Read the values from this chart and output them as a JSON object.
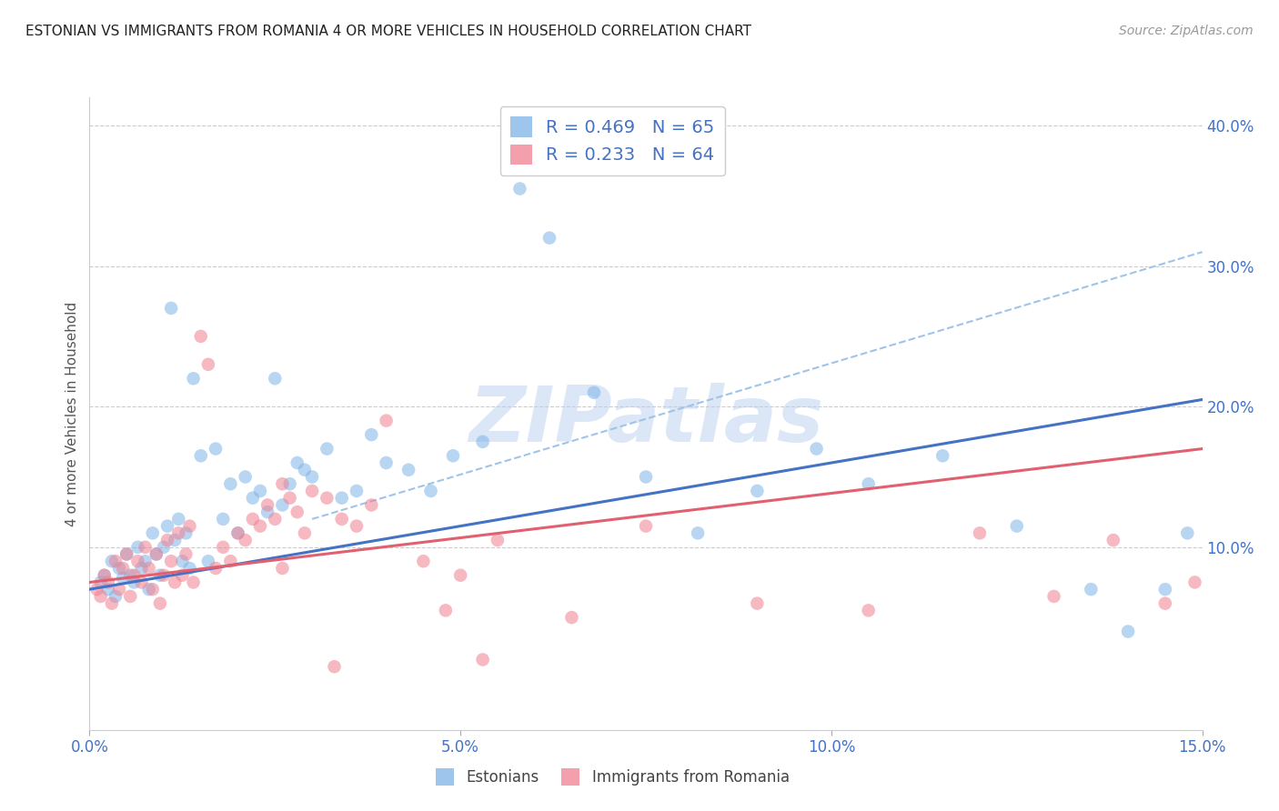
{
  "title": "ESTONIAN VS IMMIGRANTS FROM ROMANIA 4 OR MORE VEHICLES IN HOUSEHOLD CORRELATION CHART",
  "source": "Source: ZipAtlas.com",
  "ylabel": "4 or more Vehicles in Household",
  "xlim": [
    0.0,
    15.0
  ],
  "ylim": [
    -3.0,
    42.0
  ],
  "yticks_right": [
    10.0,
    20.0,
    30.0,
    40.0
  ],
  "ytick_labels_right": [
    "10.0%",
    "20.0%",
    "30.0%",
    "40.0%"
  ],
  "xticks": [
    0.0,
    5.0,
    10.0,
    15.0
  ],
  "xtick_labels": [
    "0.0%",
    "5.0%",
    "10.0%",
    "15.0%"
  ],
  "legend_entry1_label": "R = 0.469   N = 65",
  "legend_entry2_label": "R = 0.233   N = 64",
  "legend_label1": "Estonians",
  "legend_label2": "Immigrants from Romania",
  "watermark": "ZIPatlas",
  "watermark_color": "#b8d0ee",
  "background_color": "#ffffff",
  "grid_color": "#cccccc",
  "axis_color": "#4472c4",
  "blue_scatter_color": "#7eb3e8",
  "pink_scatter_color": "#f08090",
  "blue_line_color": "#4472c4",
  "pink_line_color": "#e06070",
  "dashed_line_color": "#a0c4e8",
  "blue_line_x0": 0.0,
  "blue_line_y0": 7.0,
  "blue_line_x1": 15.0,
  "blue_line_y1": 20.5,
  "pink_line_x0": 0.0,
  "pink_line_y0": 7.5,
  "pink_line_x1": 15.0,
  "pink_line_y1": 17.0,
  "dashed_line_x0": 3.0,
  "dashed_line_y0": 12.0,
  "dashed_line_x1": 15.0,
  "dashed_line_y1": 31.0,
  "blue_points_x": [
    0.15,
    0.2,
    0.25,
    0.3,
    0.35,
    0.4,
    0.45,
    0.5,
    0.55,
    0.6,
    0.65,
    0.7,
    0.75,
    0.8,
    0.85,
    0.9,
    0.95,
    1.0,
    1.05,
    1.1,
    1.15,
    1.2,
    1.25,
    1.3,
    1.35,
    1.4,
    1.5,
    1.6,
    1.7,
    1.8,
    1.9,
    2.0,
    2.1,
    2.2,
    2.3,
    2.4,
    2.5,
    2.6,
    2.7,
    2.8,
    2.9,
    3.0,
    3.2,
    3.4,
    3.6,
    3.8,
    4.0,
    4.3,
    4.6,
    4.9,
    5.3,
    5.8,
    6.2,
    6.8,
    7.5,
    8.2,
    9.0,
    9.8,
    10.5,
    11.5,
    12.5,
    13.5,
    14.0,
    14.5,
    14.8
  ],
  "blue_points_y": [
    7.5,
    8.0,
    7.0,
    9.0,
    6.5,
    8.5,
    7.8,
    9.5,
    8.0,
    7.5,
    10.0,
    8.5,
    9.0,
    7.0,
    11.0,
    9.5,
    8.0,
    10.0,
    11.5,
    27.0,
    10.5,
    12.0,
    9.0,
    11.0,
    8.5,
    22.0,
    16.5,
    9.0,
    17.0,
    12.0,
    14.5,
    11.0,
    15.0,
    13.5,
    14.0,
    12.5,
    22.0,
    13.0,
    14.5,
    16.0,
    15.5,
    15.0,
    17.0,
    13.5,
    14.0,
    18.0,
    16.0,
    15.5,
    14.0,
    16.5,
    17.5,
    35.5,
    32.0,
    21.0,
    15.0,
    11.0,
    14.0,
    17.0,
    14.5,
    16.5,
    11.5,
    7.0,
    4.0,
    7.0,
    11.0
  ],
  "pink_points_x": [
    0.1,
    0.15,
    0.2,
    0.25,
    0.3,
    0.35,
    0.4,
    0.45,
    0.5,
    0.55,
    0.6,
    0.65,
    0.7,
    0.75,
    0.8,
    0.85,
    0.9,
    0.95,
    1.0,
    1.05,
    1.1,
    1.15,
    1.2,
    1.25,
    1.3,
    1.35,
    1.4,
    1.5,
    1.6,
    1.7,
    1.8,
    1.9,
    2.0,
    2.1,
    2.2,
    2.3,
    2.4,
    2.5,
    2.6,
    2.7,
    2.8,
    2.9,
    3.0,
    3.2,
    3.4,
    3.6,
    3.8,
    4.0,
    4.5,
    5.0,
    5.5,
    6.5,
    7.5,
    9.0,
    10.5,
    12.0,
    13.0,
    13.8,
    14.5,
    14.9,
    3.3,
    2.6,
    4.8,
    5.3
  ],
  "pink_points_y": [
    7.0,
    6.5,
    8.0,
    7.5,
    6.0,
    9.0,
    7.0,
    8.5,
    9.5,
    6.5,
    8.0,
    9.0,
    7.5,
    10.0,
    8.5,
    7.0,
    9.5,
    6.0,
    8.0,
    10.5,
    9.0,
    7.5,
    11.0,
    8.0,
    9.5,
    11.5,
    7.5,
    25.0,
    23.0,
    8.5,
    10.0,
    9.0,
    11.0,
    10.5,
    12.0,
    11.5,
    13.0,
    12.0,
    14.5,
    13.5,
    12.5,
    11.0,
    14.0,
    13.5,
    12.0,
    11.5,
    13.0,
    19.0,
    9.0,
    8.0,
    10.5,
    5.0,
    11.5,
    6.0,
    5.5,
    11.0,
    6.5,
    10.5,
    6.0,
    7.5,
    1.5,
    8.5,
    5.5,
    2.0
  ]
}
